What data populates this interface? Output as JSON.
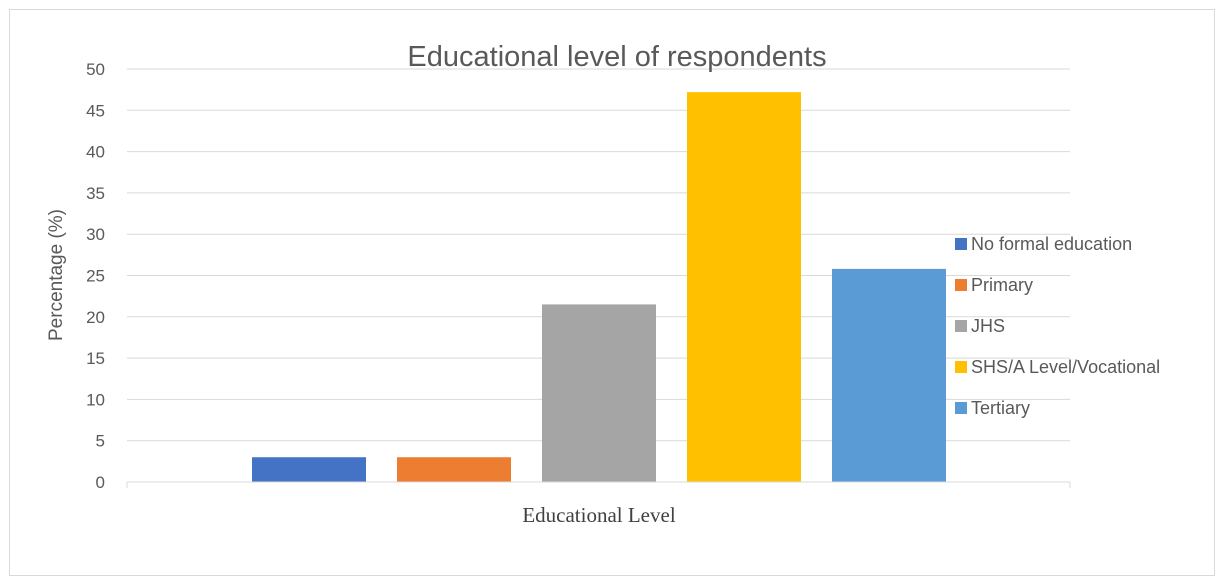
{
  "chart_data": {
    "type": "bar",
    "title": "Educational level of respondents",
    "xlabel": "Educational Level",
    "ylabel": "Percentage (%)",
    "ylim": [
      0,
      50
    ],
    "yticks": [
      0,
      5,
      10,
      15,
      20,
      25,
      30,
      35,
      40,
      45,
      50
    ],
    "grid": true,
    "legend_position": "right",
    "series": [
      {
        "name": "No formal education",
        "value": 3.0,
        "color": "#4472c4"
      },
      {
        "name": "Primary",
        "value": 3.0,
        "color": "#ed7d31"
      },
      {
        "name": "JHS",
        "value": 21.5,
        "color": "#a5a5a5"
      },
      {
        "name": "SHS/A Level/Vocational",
        "value": 47.2,
        "color": "#ffc000"
      },
      {
        "name": "Tertiary",
        "value": 25.8,
        "color": "#5b9bd5"
      }
    ]
  }
}
